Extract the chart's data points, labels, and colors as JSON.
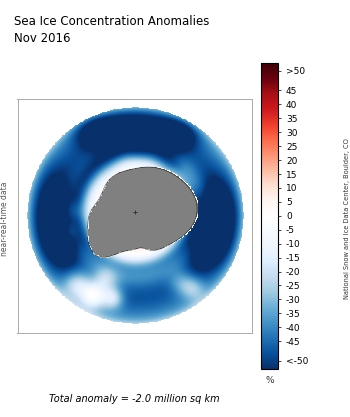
{
  "title_line1": "Sea Ice Concentration Anomalies",
  "title_line2": "Nov 2016",
  "colorbar_label_right": "National Snow and Ice Data Center, Boulder, CO",
  "colorbar_label_bottom": "%",
  "left_label": "near-real-time data",
  "bottom_label": "Total anomaly = -2.0 million sq km",
  "colorbar_tick_labels": [
    ">50",
    "45",
    "40",
    "35",
    "30",
    "25",
    "20",
    "15",
    "10",
    "5",
    "0",
    "-5",
    "-10",
    "-15",
    "-20",
    "-25",
    "-30",
    "-35",
    "-40",
    "-45",
    "<-50"
  ],
  "colorbar_tick_values": [
    52,
    45,
    40,
    35,
    30,
    25,
    20,
    15,
    10,
    5,
    0,
    -5,
    -10,
    -15,
    -20,
    -25,
    -30,
    -35,
    -40,
    -45,
    -52
  ],
  "vmin": -55,
  "vmax": 55,
  "antarctica_color": "#808080",
  "background_color": "#ffffff",
  "title_fontsize": 8.5,
  "label_fontsize": 7,
  "colorbar_fontsize": 6.5,
  "neg_colors": [
    "#08306b",
    "#08519c",
    "#2171b5",
    "#4292c6",
    "#6baed6",
    "#9ecae1",
    "#c6dbef",
    "#ddeeff",
    "#eef5fc",
    "#f7fbff",
    "#ffffff"
  ],
  "pos_colors": [
    "#ffffff",
    "#fff5f0",
    "#fee0d2",
    "#fcbba1",
    "#fc9272",
    "#fb6a4a",
    "#ef3b2c",
    "#cb181d",
    "#a50f15",
    "#67000d",
    "#3d0008"
  ]
}
